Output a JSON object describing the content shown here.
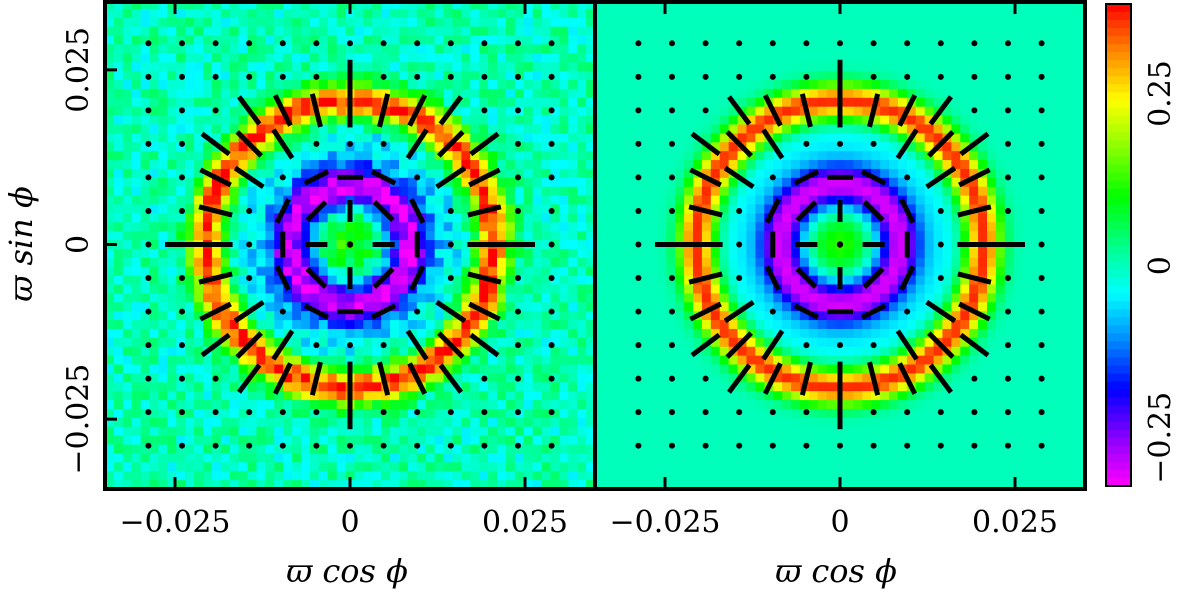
{
  "chart_data": [
    {
      "type": "heatmap",
      "panel": "left",
      "variant": "noisy",
      "xlabel": "ϖ cos ϕ",
      "ylabel": "ϖ sin ϕ",
      "xlim": [
        -0.035,
        0.035
      ],
      "ylim": [
        -0.035,
        0.035
      ],
      "x_ticks": [
        {
          "value": -0.025,
          "label": "−0.025"
        },
        {
          "value": 0,
          "label": "0"
        },
        {
          "value": 0.025,
          "label": "0.025"
        }
      ],
      "y_ticks": [
        {
          "value": 0.025,
          "label": "0.025"
        },
        {
          "value": 0,
          "label": "0"
        },
        {
          "value": -0.025,
          "label": "−0.025"
        }
      ],
      "field": {
        "center": [
          0,
          0
        ],
        "core_value": 0.12,
        "inner_ring": {
          "radius": 0.0085,
          "width": 0.0022,
          "value": -0.3
        },
        "outer_ring": {
          "radius": 0.0205,
          "width": 0.0018,
          "value": 0.36
        },
        "background_value": 0.0,
        "noise_amplitude": 0.05
      },
      "pixel_grid": 55,
      "overlay": {
        "grid_spacing": 0.0048,
        "grid_extent": 0.031,
        "inner_sticks": "tangential",
        "outer_sticks": "radial"
      }
    },
    {
      "type": "heatmap",
      "panel": "right",
      "variant": "smooth",
      "xlabel": "ϖ cos ϕ",
      "xlim": [
        -0.035,
        0.035
      ],
      "ylim": [
        -0.035,
        0.035
      ],
      "x_ticks": [
        {
          "value": -0.025,
          "label": "−0.025"
        },
        {
          "value": 0,
          "label": "0"
        },
        {
          "value": 0.025,
          "label": "0.025"
        }
      ],
      "field": {
        "center": [
          0,
          0
        ],
        "core_value": 0.12,
        "inner_ring": {
          "radius": 0.0085,
          "width": 0.0022,
          "value": -0.3
        },
        "outer_ring": {
          "radius": 0.0205,
          "width": 0.0018,
          "value": 0.36
        },
        "background_value": 0.0,
        "noise_amplitude": 0.0
      },
      "pixel_grid": 55,
      "overlay": {
        "grid_spacing": 0.0048,
        "grid_extent": 0.031,
        "inner_sticks": "tangential",
        "outer_sticks": "radial"
      }
    }
  ],
  "colorbar": {
    "vmin": -0.32,
    "vmax": 0.38,
    "ticks": [
      {
        "value": 0.25,
        "label": "0.25"
      },
      {
        "value": 0,
        "label": "0"
      },
      {
        "value": -0.25,
        "label": "−0.25"
      }
    ],
    "colors": [
      "#ff00ff",
      "#8800ff",
      "#0000ff",
      "#0088ff",
      "#00ffff",
      "#00ff88",
      "#00ff00",
      "#88ff00",
      "#ffff00",
      "#ff8800",
      "#ff0000"
    ]
  }
}
